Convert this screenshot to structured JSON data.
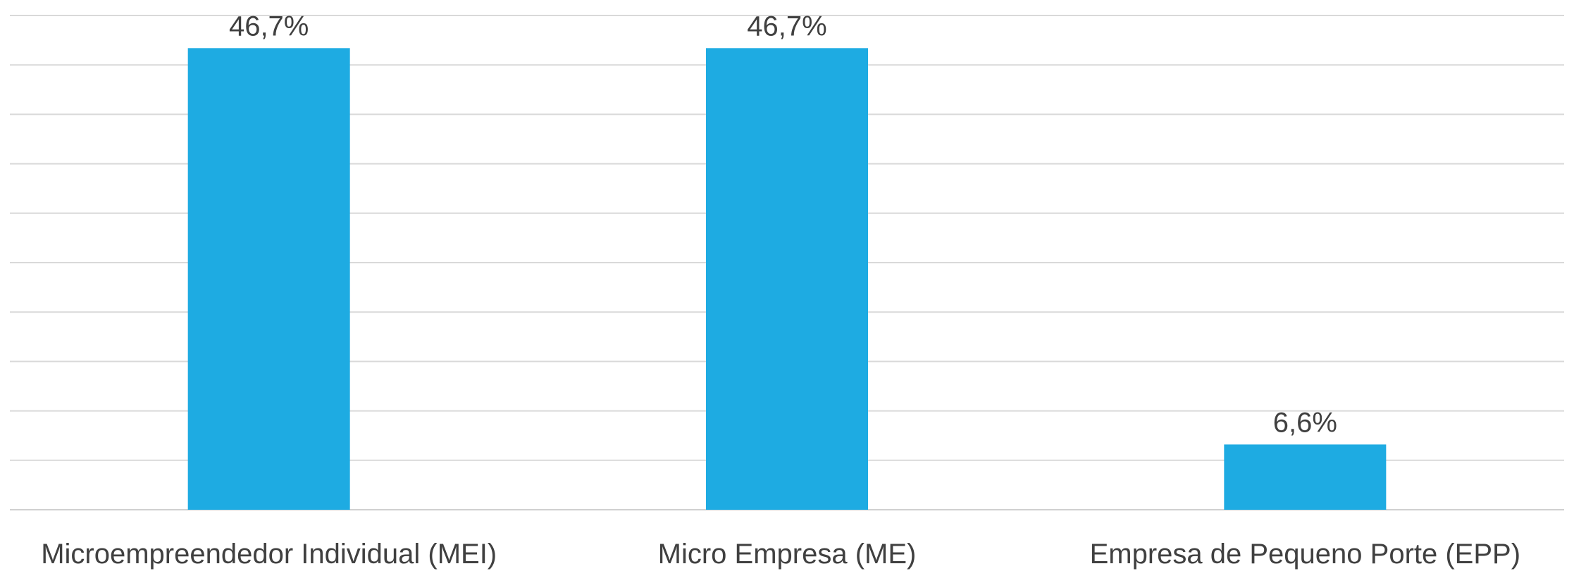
{
  "chart_data": {
    "type": "bar",
    "title": "",
    "xlabel": "",
    "ylabel": "",
    "categories": [
      "Microempreendedor Individual (MEI)",
      "Micro Empresa (ME)",
      "Empresa de Pequeno Porte (EPP)"
    ],
    "values": [
      46.7,
      46.7,
      6.6
    ],
    "data_labels": [
      "46,7%",
      "46,7%",
      "6,6%"
    ],
    "ylim": [
      0,
      50
    ],
    "ytick_step": 5,
    "grid": true,
    "legend": "none",
    "colors": {
      "bar": "#1eabe2",
      "grid": "#d9d9d9",
      "text": "#404040"
    }
  }
}
